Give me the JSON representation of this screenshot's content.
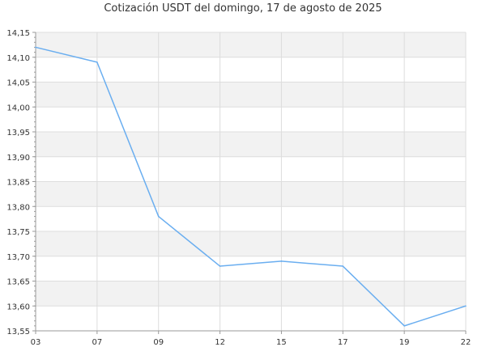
{
  "chart_data": {
    "type": "line",
    "title": "Cotización USDT del domingo, 17 de agosto de 2025",
    "xlabel": "",
    "ylabel": "",
    "categories": [
      "03",
      "07",
      "09",
      "12",
      "15",
      "17",
      "19",
      "22"
    ],
    "series": [
      {
        "values": [
          14.12,
          14.09,
          13.78,
          13.68,
          13.69,
          13.68,
          13.56,
          13.6
        ]
      }
    ],
    "ylim": [
      13.55,
      14.15
    ],
    "yticks": [
      "13,55",
      "13,60",
      "13,65",
      "13,70",
      "13,75",
      "13,80",
      "13,85",
      "13,90",
      "13,95",
      "14,00",
      "14,05",
      "14,10",
      "14,15"
    ],
    "grid": true,
    "legend": "none",
    "colors": {
      "line": "#6aaef0",
      "band": "#f2f2f2",
      "grid": "#dddddd",
      "axis": "#999999",
      "text": "#333333"
    }
  }
}
